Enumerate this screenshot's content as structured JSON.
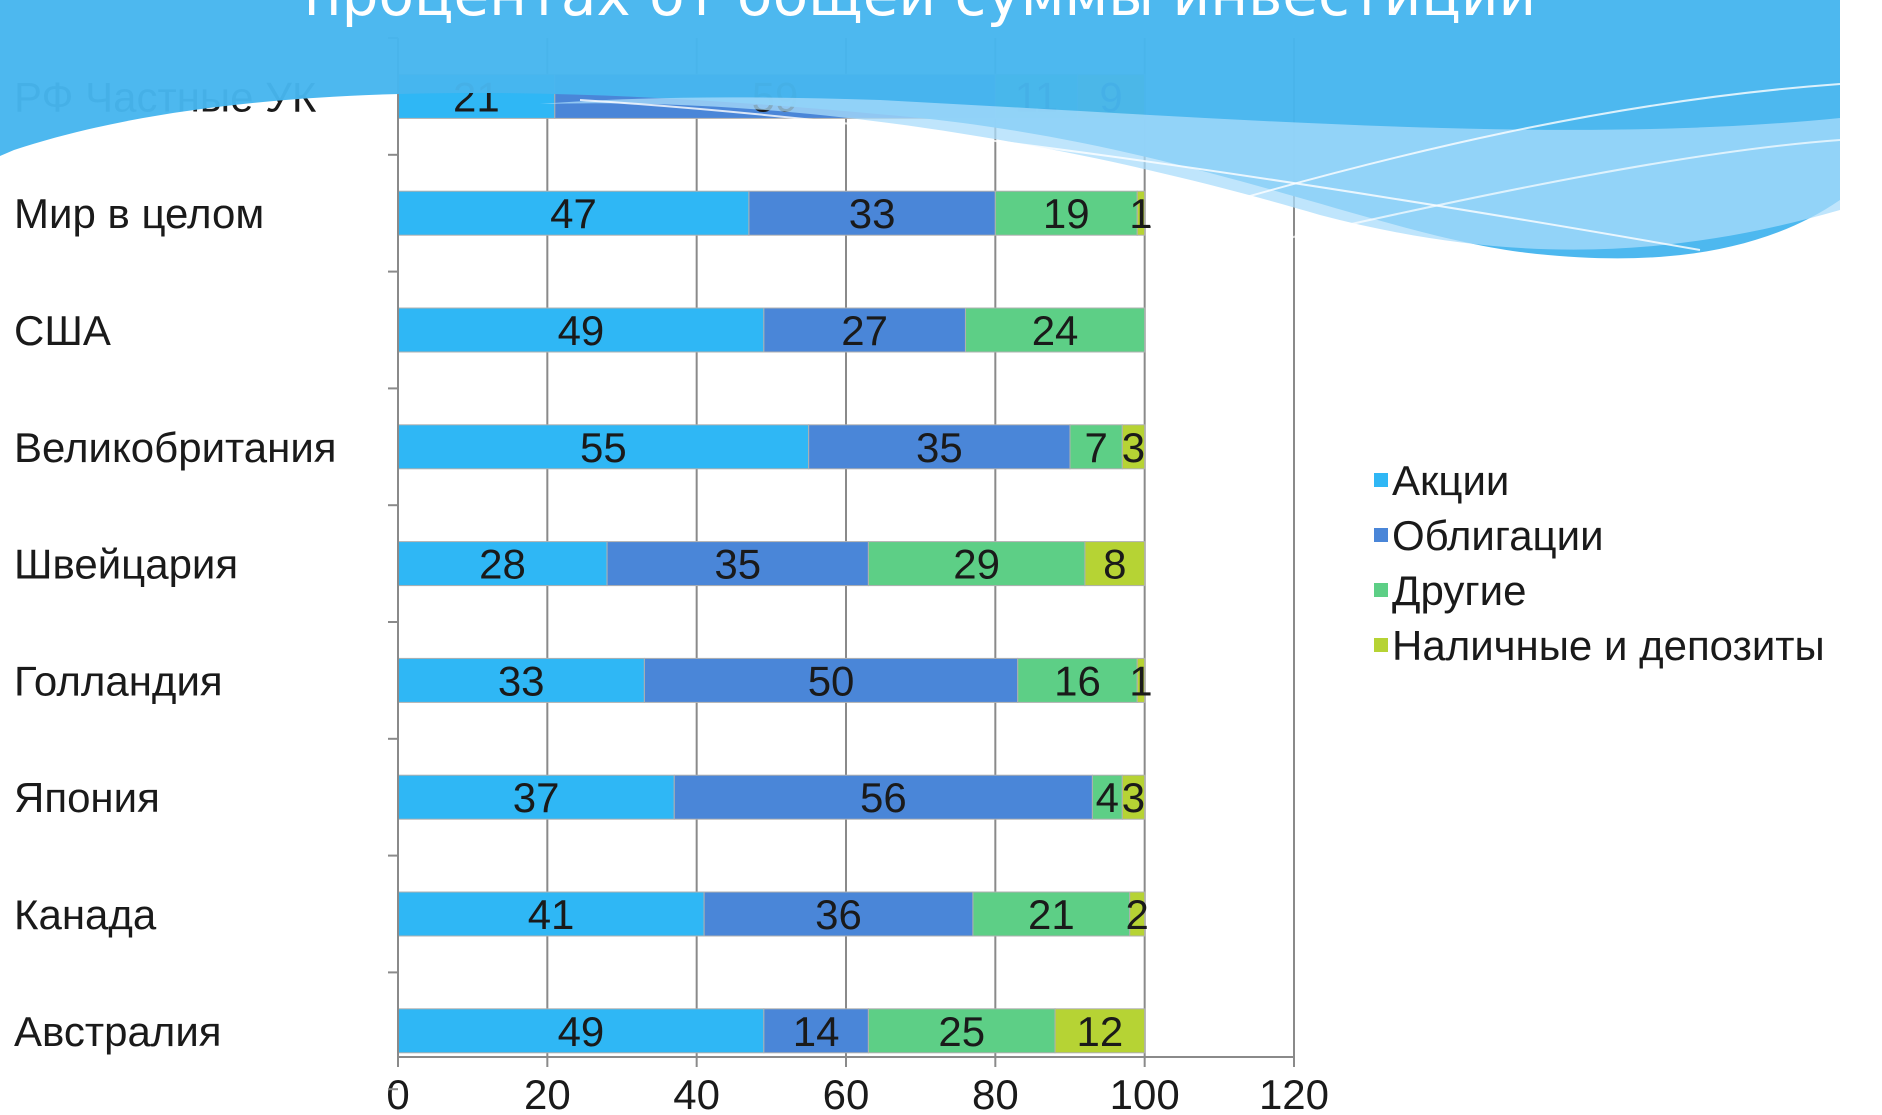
{
  "slide": {
    "title_fragment": "процентах от общей суммы инвестиций",
    "accent_color": "#47b6ee"
  },
  "chart_data": {
    "type": "bar",
    "orientation": "horizontal",
    "stacked": true,
    "categories": [
      "РФ Частные УК",
      "Мир в целом",
      "США",
      "Великобритания",
      "Швейцария",
      "Голландия",
      "Япония",
      "Канада",
      "Австралия"
    ],
    "series": [
      {
        "name": "Акции",
        "color": "#2fb7f5",
        "values": [
          21,
          47,
          49,
          55,
          28,
          33,
          37,
          41,
          49
        ]
      },
      {
        "name": "Облигации",
        "color": "#4a86d8",
        "values": [
          59,
          33,
          27,
          35,
          35,
          50,
          56,
          36,
          14
        ]
      },
      {
        "name": "Другие",
        "color": "#5dcf86",
        "values": [
          11,
          19,
          24,
          7,
          29,
          16,
          4,
          21,
          25
        ]
      },
      {
        "name": "Наличные и депозиты",
        "color": "#b6d334",
        "values": [
          9,
          1,
          null,
          3,
          8,
          1,
          3,
          2,
          12
        ]
      }
    ],
    "xlim": [
      0,
      120
    ],
    "xticks": [
      0,
      20,
      40,
      60,
      80,
      100,
      120
    ],
    "grid": true,
    "legend_position": "right"
  }
}
